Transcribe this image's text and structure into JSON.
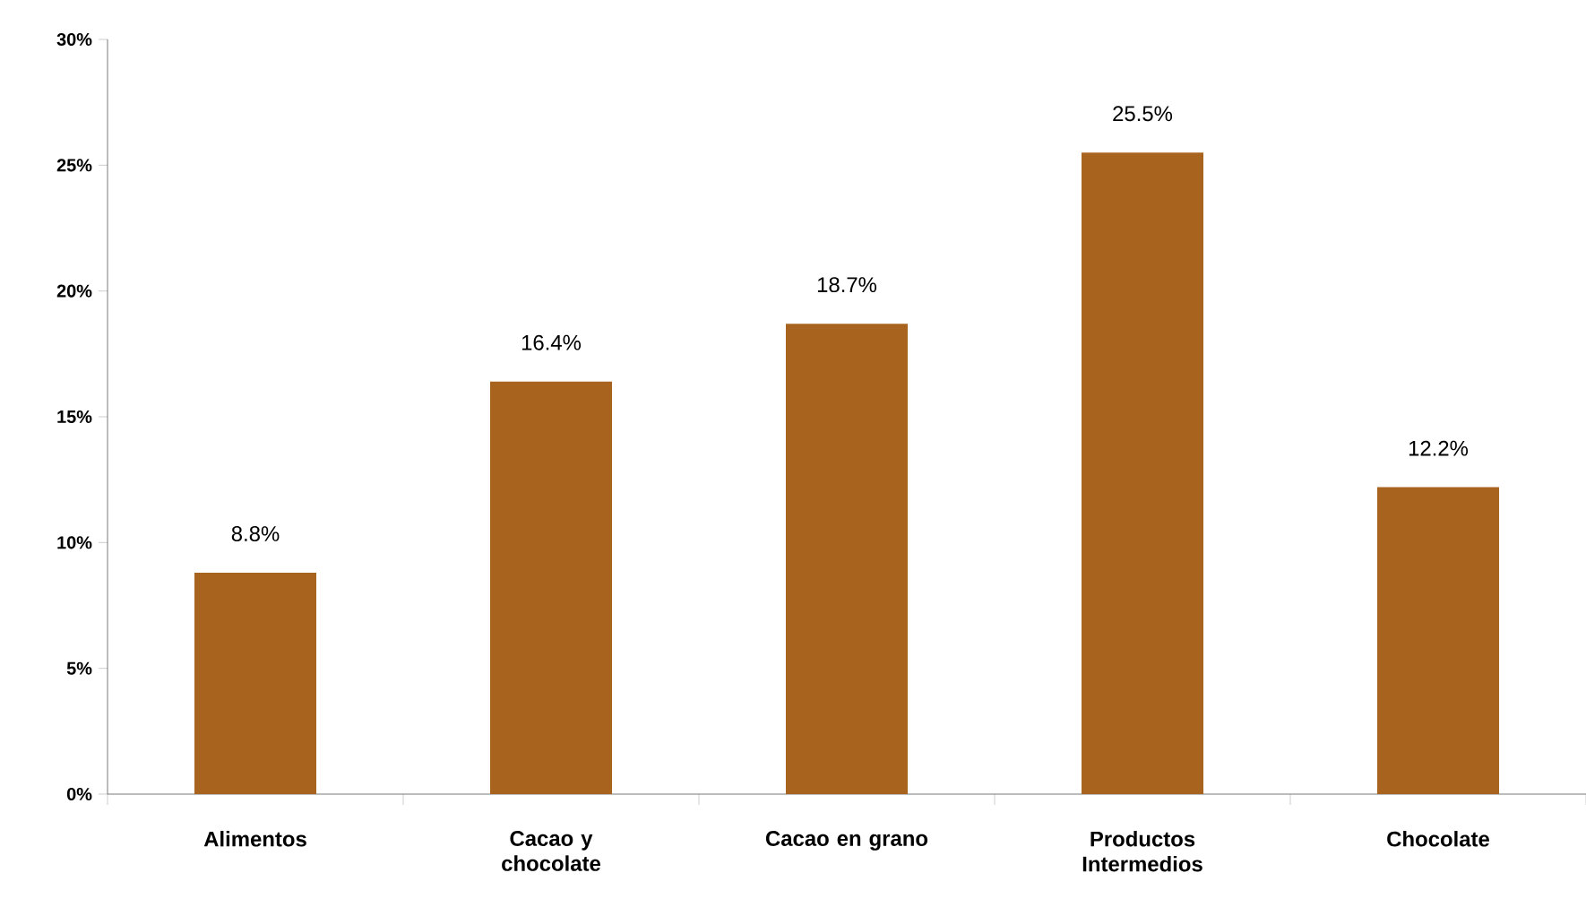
{
  "chart_data": {
    "type": "bar",
    "categories": [
      "Alimentos",
      "Cacao y chocolate",
      "Cacao en grano",
      "Productos Intermedios",
      "Chocolate"
    ],
    "values": [
      8.8,
      16.4,
      18.7,
      25.5,
      12.2
    ],
    "value_labels": [
      "8.8%",
      "16.4%",
      "18.7%",
      "25.5%",
      "12.2%"
    ],
    "color": "#a8641e",
    "ylim": [
      0,
      30
    ],
    "yticks": [
      {
        "value": 0,
        "label": "0%"
      },
      {
        "value": 5,
        "label": "5%"
      },
      {
        "value": 10,
        "label": "10%"
      },
      {
        "value": 15,
        "label": "15%"
      },
      {
        "value": 20,
        "label": "20%"
      },
      {
        "value": 25,
        "label": "25%"
      },
      {
        "value": 30,
        "label": "30%"
      }
    ],
    "grid": false
  }
}
